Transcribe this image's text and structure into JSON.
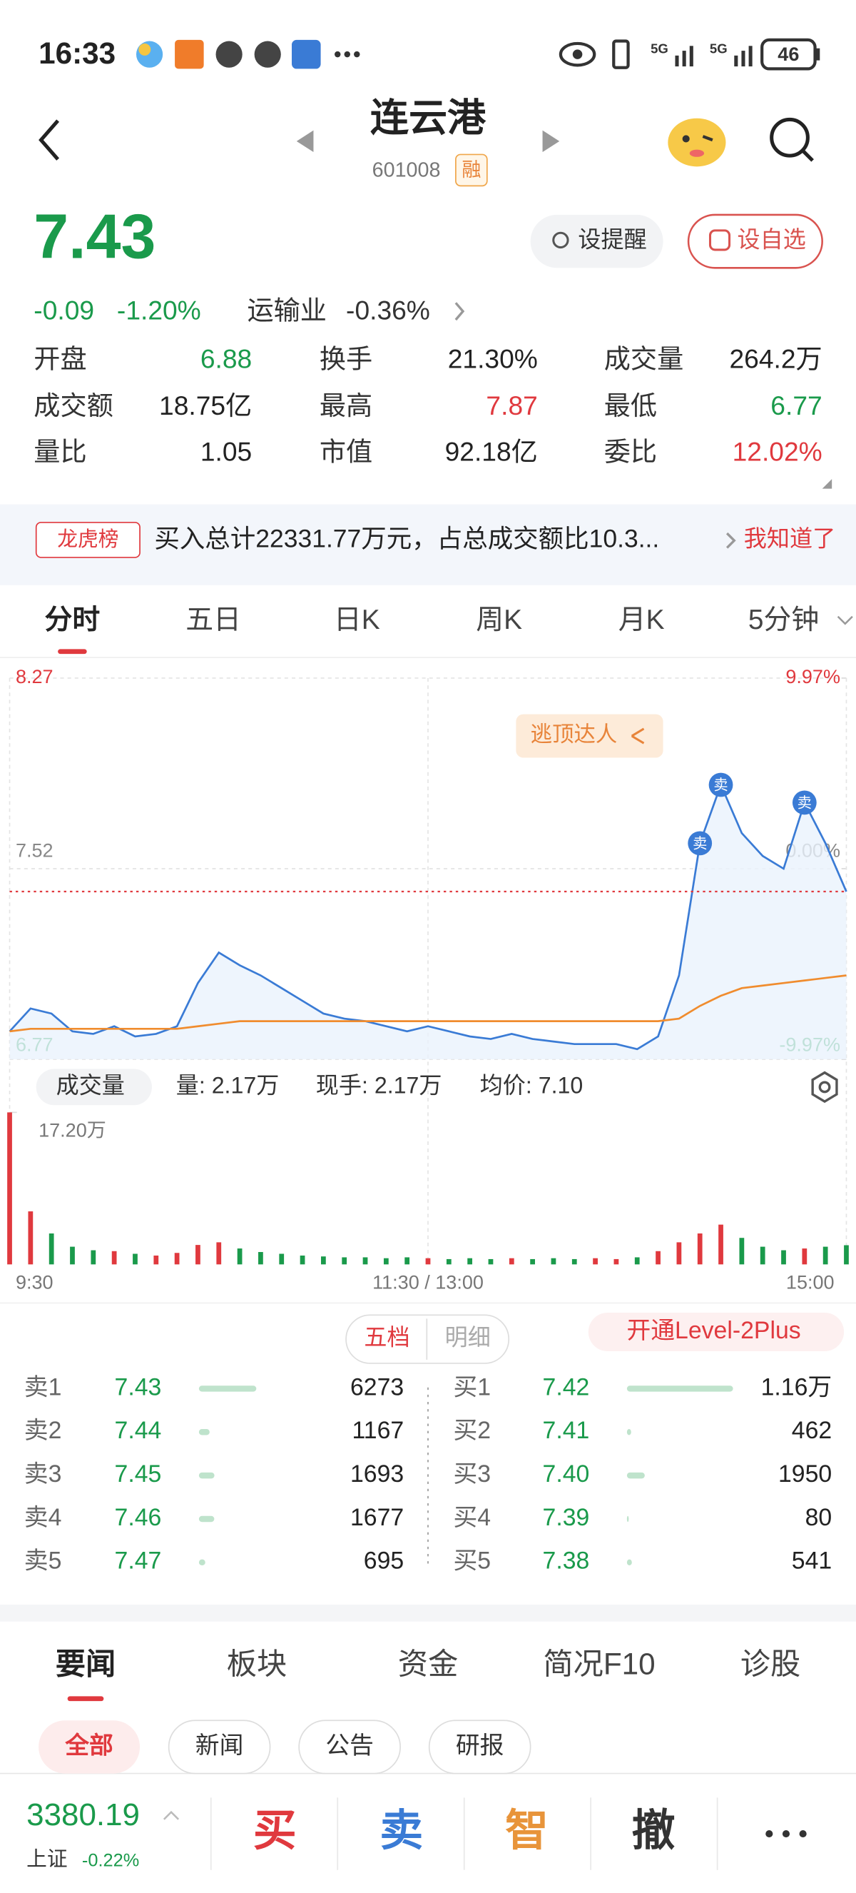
{
  "status_bar": {
    "time": "16:33",
    "signal_1": "5G",
    "signal_2": "5G",
    "battery": "46"
  },
  "header": {
    "title": "连云港",
    "code": "601008",
    "badge": "融"
  },
  "quote": {
    "price": "7.43",
    "change": "-0.09",
    "change_pct": "-1.20%",
    "sector": "运输业",
    "sector_pct": "-0.36%",
    "buttons": [
      "设提醒",
      "设自选"
    ]
  },
  "stats": [
    {
      "label": "开盘",
      "value": "6.88",
      "color": "#1a9a4b"
    },
    {
      "label": "换手",
      "value": "21.30%",
      "color": "#222222"
    },
    {
      "label": "成交量",
      "value": "264.2万",
      "color": "#222222"
    },
    {
      "label": "成交额",
      "value": "18.75亿",
      "color": "#222222"
    },
    {
      "label": "最高",
      "value": "7.87",
      "color": "#e0393e"
    },
    {
      "label": "最低",
      "value": "6.77",
      "color": "#1a9a4b"
    },
    {
      "label": "量比",
      "value": "1.05",
      "color": "#222222"
    },
    {
      "label": "市值",
      "value": "92.18亿",
      "color": "#222222"
    },
    {
      "label": "委比",
      "value": "12.02%",
      "color": "#e0393e"
    }
  ],
  "notice": {
    "tag": "龙虎榜",
    "text": "买入总计22331.77万元，占总成交额比10.3...",
    "action": "我知道了"
  },
  "chart_tabs": [
    "分时",
    "五日",
    "日K",
    "周K",
    "月K",
    "5分钟"
  ],
  "chart_data": [
    {
      "type": "line",
      "x": [
        0,
        6,
        12,
        18,
        24,
        30,
        36,
        42,
        48,
        54,
        60,
        66,
        72,
        78,
        84,
        90,
        96,
        102,
        108,
        114,
        120,
        126,
        132,
        138,
        144,
        150,
        156,
        162,
        168,
        174,
        180,
        186,
        192,
        198,
        204,
        210,
        216,
        222,
        228,
        234,
        240
      ],
      "xlim": [
        0,
        240
      ],
      "xticks": [
        {
          "value": 0,
          "label": "9:30"
        },
        {
          "value": 120,
          "label": "11:30 / 13:00"
        },
        {
          "value": 240,
          "label": "15:00"
        }
      ],
      "ylim": [
        6.77,
        8.27
      ],
      "yticks": [
        8.27,
        7.52,
        6.77
      ],
      "y2lim": [
        -9.97,
        9.97
      ],
      "y2ticks": [
        {
          "value": 9.97,
          "label": "9.97%"
        },
        {
          "value": 0,
          "label": "0.00%"
        },
        {
          "value": -9.97,
          "label": "-9.97%"
        }
      ],
      "grid": true,
      "series": [
        {
          "color": "#3a7bd5",
          "values": [
            6.88,
            6.97,
            6.95,
            6.88,
            6.87,
            6.9,
            6.86,
            6.87,
            6.9,
            7.07,
            7.19,
            7.14,
            7.1,
            7.05,
            7.0,
            6.95,
            6.93,
            6.92,
            6.9,
            6.88,
            6.9,
            6.88,
            6.86,
            6.85,
            6.87,
            6.85,
            6.84,
            6.83,
            6.83,
            6.83,
            6.81,
            6.86,
            7.1,
            7.62,
            7.85,
            7.66,
            7.57,
            7.52,
            7.78,
            7.62,
            7.43
          ]
        },
        {
          "color": "#f08c2e",
          "values": [
            6.88,
            6.89,
            6.89,
            6.89,
            6.89,
            6.89,
            6.89,
            6.89,
            6.89,
            6.9,
            6.91,
            6.92,
            6.92,
            6.92,
            6.92,
            6.92,
            6.92,
            6.92,
            6.92,
            6.92,
            6.92,
            6.92,
            6.92,
            6.92,
            6.92,
            6.92,
            6.92,
            6.92,
            6.92,
            6.92,
            6.92,
            6.92,
            6.93,
            6.98,
            7.02,
            7.05,
            7.06,
            7.07,
            7.08,
            7.09,
            7.1
          ]
        }
      ],
      "annotation": "逃顶达人",
      "signals": [
        {
          "x": 198,
          "label": "卖"
        },
        {
          "x": 204,
          "label": "卖"
        },
        {
          "x": 228,
          "label": "卖"
        }
      ]
    },
    {
      "type": "bar",
      "x": [
        0,
        6,
        12,
        18,
        24,
        30,
        36,
        42,
        48,
        54,
        60,
        66,
        72,
        78,
        84,
        90,
        96,
        102,
        108,
        114,
        120,
        126,
        132,
        138,
        144,
        150,
        156,
        162,
        168,
        174,
        180,
        186,
        192,
        198,
        204,
        210,
        216,
        222,
        228,
        234,
        240
      ],
      "xlim": [
        0,
        240
      ],
      "values": [
        17.2,
        6.0,
        3.5,
        2.0,
        1.6,
        1.5,
        1.2,
        1.0,
        1.3,
        2.2,
        2.5,
        1.8,
        1.4,
        1.2,
        1.0,
        0.9,
        0.8,
        0.8,
        0.7,
        0.8,
        0.7,
        0.6,
        0.7,
        0.6,
        0.7,
        0.6,
        0.7,
        0.6,
        0.7,
        0.6,
        0.8,
        1.5,
        2.5,
        3.5,
        4.5,
        3.0,
        2.0,
        1.6,
        1.8,
        2.0,
        2.17
      ],
      "ylim": [
        0,
        17.2
      ],
      "yticks": [
        {
          "value": 17.2,
          "label": "17.20万"
        }
      ],
      "up_color": "#e0393e",
      "down_color": "#1a9a4b"
    }
  ],
  "volume_info": {
    "selector": "成交量",
    "volume": "量: 2.17万",
    "hand": "现手: 2.17万",
    "avg_price": "均价: 7.10"
  },
  "order_book": {
    "tabs": [
      "五档",
      "明细"
    ],
    "upgrade": "开通Level-2Plus",
    "asks": [
      {
        "label": "卖1",
        "price": "7.43",
        "volume": 6273
      },
      {
        "label": "卖2",
        "price": "7.44",
        "volume": 1167
      },
      {
        "label": "卖3",
        "price": "7.45",
        "volume": 1693
      },
      {
        "label": "卖4",
        "price": "7.46",
        "volume": 1677
      },
      {
        "label": "卖5",
        "price": "7.47",
        "volume": 695
      }
    ],
    "bids": [
      {
        "label": "买1",
        "price": "7.42",
        "volume": 11600,
        "volume_label": "1.16万"
      },
      {
        "label": "买2",
        "price": "7.41",
        "volume": 462
      },
      {
        "label": "买3",
        "price": "7.40",
        "volume": 1950
      },
      {
        "label": "买4",
        "price": "7.39",
        "volume": 80
      },
      {
        "label": "买5",
        "price": "7.38",
        "volume": 541
      }
    ]
  },
  "news": {
    "tabs": [
      "要闻",
      "板块",
      "资金",
      "简况F10",
      "诊股"
    ],
    "filters": [
      "全部",
      "新闻",
      "公告",
      "研报"
    ]
  },
  "footer": {
    "index_value": "3380.19",
    "index_name": "上证",
    "index_pct": "-0.22%",
    "actions": [
      "买",
      "卖",
      "智",
      "撤"
    ]
  }
}
